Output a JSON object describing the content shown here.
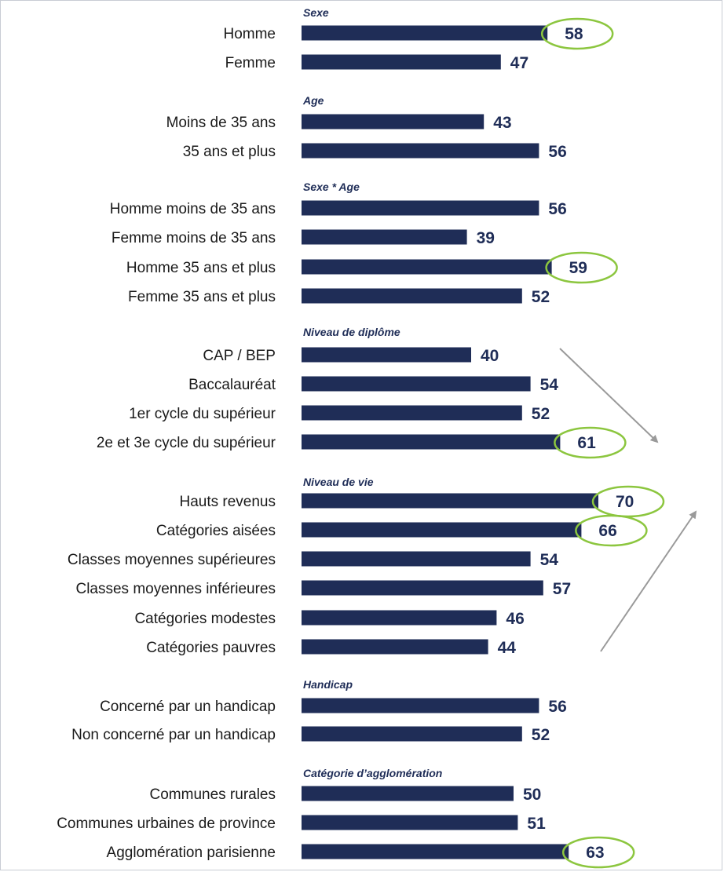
{
  "chart_data": {
    "type": "bar",
    "orientation": "horizontal",
    "xlim": [
      0,
      70
    ],
    "grid": false,
    "colors": {
      "bar": "#1f2d57",
      "value_text": "#1f2d57",
      "highlight_circle": "#8cc63f",
      "arrow": "#9a9a9a"
    },
    "groups": [
      {
        "title": "Sexe",
        "items": [
          {
            "label": "Homme",
            "value": 58,
            "highlight": true
          },
          {
            "label": "Femme",
            "value": 47
          }
        ]
      },
      {
        "title": "Age",
        "items": [
          {
            "label": "Moins de 35 ans",
            "value": 43
          },
          {
            "label": "35 ans et plus",
            "value": 56
          }
        ]
      },
      {
        "title": "Sexe * Age",
        "items": [
          {
            "label": "Homme moins de 35 ans",
            "value": 56
          },
          {
            "label": "Femme moins de 35 ans",
            "value": 39
          },
          {
            "label": "Homme 35 ans et plus",
            "value": 59,
            "highlight": true
          },
          {
            "label": "Femme 35 ans et plus",
            "value": 52
          }
        ]
      },
      {
        "title": "Niveau de diplôme",
        "items": [
          {
            "label": "CAP / BEP",
            "value": 40
          },
          {
            "label": "Baccalauréat",
            "value": 54
          },
          {
            "label": "1er cycle du supérieur",
            "value": 52
          },
          {
            "label": "2e et 3e cycle du supérieur",
            "value": 61,
            "highlight": true
          }
        ]
      },
      {
        "title": "Niveau de vie",
        "items": [
          {
            "label": "Hauts revenus",
            "value": 70,
            "highlight": true
          },
          {
            "label": "Catégories aisées",
            "value": 66,
            "highlight": true
          },
          {
            "label": "Classes moyennes supérieures",
            "value": 54
          },
          {
            "label": "Classes moyennes inférieures",
            "value": 57
          },
          {
            "label": "Catégories modestes",
            "value": 46
          },
          {
            "label": "Catégories pauvres",
            "value": 44
          }
        ]
      },
      {
        "title": "Handicap",
        "items": [
          {
            "label": "Concerné par un handicap",
            "value": 56
          },
          {
            "label": "Non concerné par un handicap",
            "value": 52
          }
        ]
      },
      {
        "title": "Catégorie d’agglomération",
        "items": [
          {
            "label": "Communes rurales",
            "value": 50
          },
          {
            "label": "Communes urbaines de province",
            "value": 51
          },
          {
            "label": "Agglomération parisienne",
            "value": 63,
            "highlight": true
          }
        ]
      }
    ],
    "annotations": [
      {
        "type": "arrow",
        "direction": "down-right",
        "note": "diplôme"
      },
      {
        "type": "arrow",
        "direction": "up-right",
        "note": "niveau de vie"
      }
    ]
  }
}
